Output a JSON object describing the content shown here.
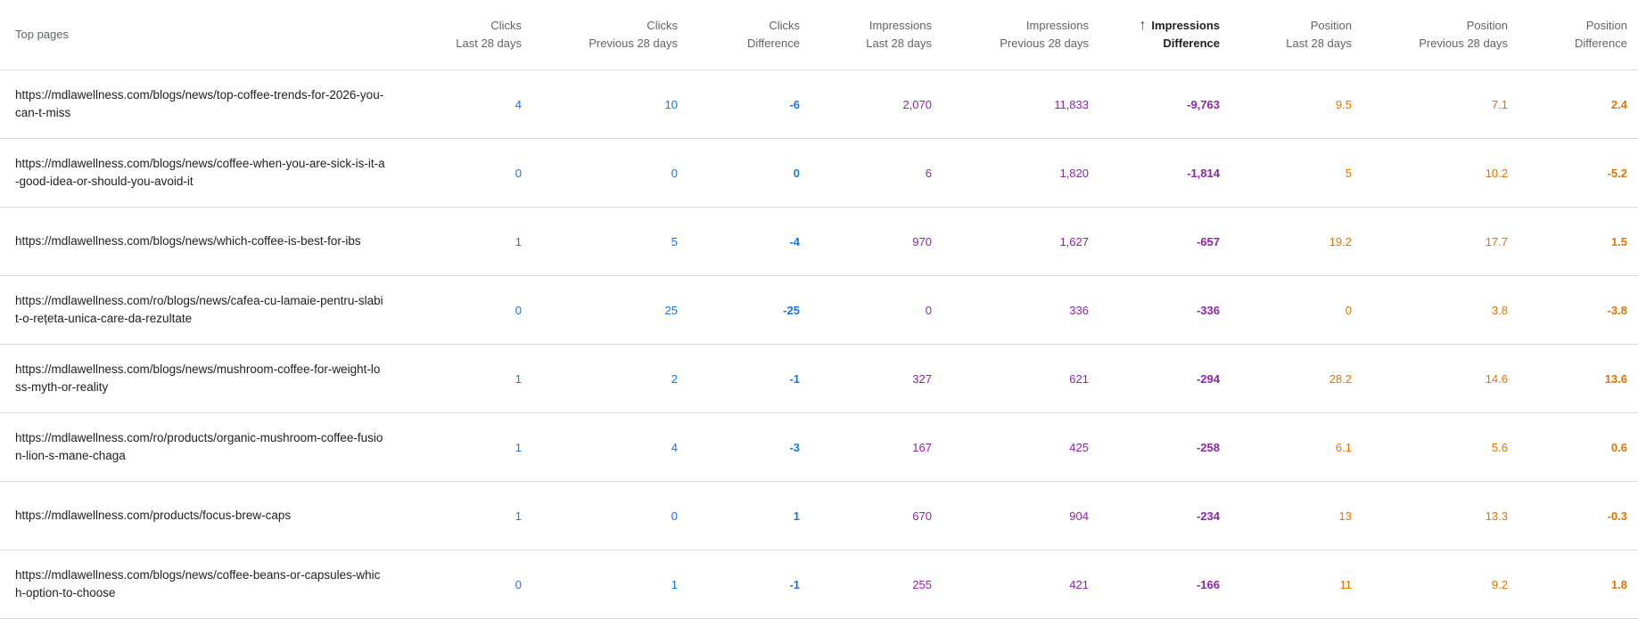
{
  "table": {
    "headers": [
      {
        "line1": "Top pages",
        "line2": ""
      },
      {
        "line1": "Clicks",
        "line2": "Last 28 days"
      },
      {
        "line1": "Clicks",
        "line2": "Previous 28 days"
      },
      {
        "line1": "Clicks",
        "line2": "Difference"
      },
      {
        "line1": "Impressions",
        "line2": "Last 28 days"
      },
      {
        "line1": "Impressions",
        "line2": "Previous 28 days"
      },
      {
        "line1": "Impressions",
        "line2": "Difference"
      },
      {
        "line1": "Position",
        "line2": "Last 28 days"
      },
      {
        "line1": "Position",
        "line2": "Previous 28 days"
      },
      {
        "line1": "Position",
        "line2": "Difference"
      }
    ],
    "sort_icon": "arrow-upward-icon",
    "rows": [
      {
        "page": "https://mdlawellness.com/blogs/news/top-coffee-trends-for-2026-you-can-t-miss",
        "values": [
          "4",
          "10",
          "-6",
          "2,070",
          "11,833",
          "-9,763",
          "9.5",
          "7.1",
          "2.4"
        ]
      },
      {
        "page": "https://mdlawellness.com/blogs/news/coffee-when-you-are-sick-is-it-a-good-idea-or-should-you-avoid-it",
        "values": [
          "0",
          "0",
          "0",
          "6",
          "1,820",
          "-1,814",
          "5",
          "10.2",
          "-5.2"
        ]
      },
      {
        "page": "https://mdlawellness.com/blogs/news/which-coffee-is-best-for-ibs",
        "values": [
          "1",
          "5",
          "-4",
          "970",
          "1,627",
          "-657",
          "19.2",
          "17.7",
          "1.5"
        ]
      },
      {
        "page": "https://mdlawellness.com/ro/blogs/news/cafea-cu-lamaie-pentru-slabit-o-rețeta-unica-care-da-rezultate",
        "values": [
          "0",
          "25",
          "-25",
          "0",
          "336",
          "-336",
          "0",
          "3.8",
          "-3.8"
        ]
      },
      {
        "page": "https://mdlawellness.com/blogs/news/mushroom-coffee-for-weight-loss-myth-or-reality",
        "values": [
          "1",
          "2",
          "-1",
          "327",
          "621",
          "-294",
          "28.2",
          "14.6",
          "13.6"
        ]
      },
      {
        "page": "https://mdlawellness.com/ro/products/organic-mushroom-coffee-fusion-lion-s-mane-chaga",
        "values": [
          "1",
          "4",
          "-3",
          "167",
          "425",
          "-258",
          "6.1",
          "5.6",
          "0.6"
        ]
      },
      {
        "page": "https://mdlawellness.com/products/focus-brew-caps",
        "values": [
          "1",
          "0",
          "1",
          "670",
          "904",
          "-234",
          "13",
          "13.3",
          "-0.3"
        ]
      },
      {
        "page": "https://mdlawellness.com/blogs/news/coffee-beans-or-capsules-which-option-to-choose",
        "values": [
          "0",
          "1",
          "-1",
          "255",
          "421",
          "-166",
          "11",
          "9.2",
          "1.8"
        ]
      }
    ]
  },
  "colors": {
    "clicks": "#1a73e8",
    "impressions": "#8e24aa",
    "position": "#e37400",
    "divider": "#dadce0"
  }
}
